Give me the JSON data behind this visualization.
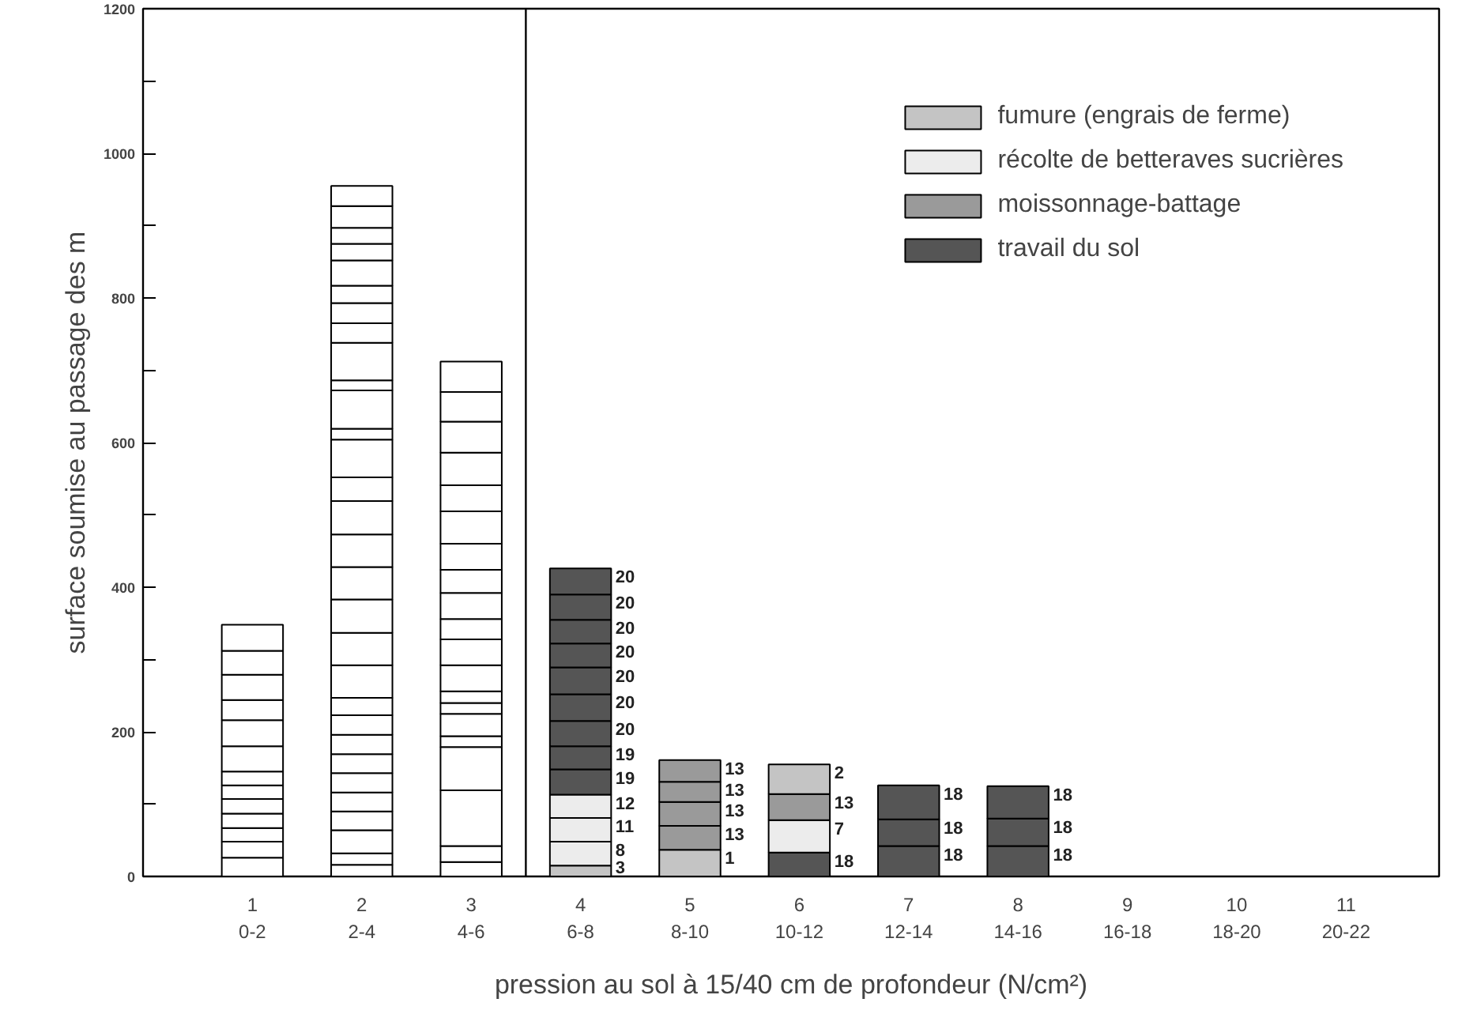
{
  "chart_data": {
    "type": "bar",
    "stacked": true,
    "xlabel": "pression au sol à 15/40 cm de profondeur (N/cm²)",
    "ylabel": "surface soumise au passage des m",
    "categories": [
      "1\n0-2",
      "2\n2-4",
      "3\n4-6",
      "4\n6-8",
      "5\n8-10",
      "6\n10-12",
      "7\n12-14",
      "8\n14-16",
      "9\n16-18",
      "10\n18-20",
      "11\n20-22"
    ],
    "ylim": [
      0,
      1200
    ],
    "yticks": [
      0,
      {
        "value": 100,
        "label": null
      },
      200,
      {
        "value": 300,
        "label": null
      },
      400,
      {
        "value": 500,
        "label": null
      },
      600,
      {
        "value": 700,
        "label": null
      },
      800,
      {
        "value": 900,
        "label": null
      },
      1000,
      {
        "value": 1100,
        "label": null
      },
      1200
    ],
    "legend": "top right",
    "series": [
      {
        "color": "#ffffff",
        "values": [
          26,
          16,
          20,
          null,
          null,
          null,
          null,
          null,
          null,
          null,
          null
        ]
      },
      {
        "color": "#ffffff",
        "values": [
          22,
          16,
          22,
          null,
          null,
          null,
          null,
          null,
          null,
          null,
          null
        ]
      },
      {
        "color": "#ffffff",
        "values": [
          19,
          32,
          77,
          null,
          null,
          null,
          null,
          null,
          null,
          null,
          null
        ]
      },
      {
        "color": "#ffffff",
        "values": [
          20,
          26,
          60,
          null,
          null,
          null,
          null,
          null,
          null,
          null,
          null
        ]
      },
      {
        "color": "#ffffff",
        "values": [
          20,
          26,
          15,
          null,
          null,
          null,
          null,
          null,
          null,
          null,
          null
        ]
      },
      {
        "color": "#ffffff",
        "values": [
          19,
          27,
          31,
          null,
          null,
          null,
          null,
          null,
          null,
          null,
          null
        ]
      },
      {
        "color": "#ffffff",
        "values": [
          19,
          26,
          15,
          null,
          null,
          null,
          null,
          null,
          null,
          null,
          null
        ]
      },
      {
        "color": "#ffffff",
        "values": [
          35,
          27,
          16,
          null,
          null,
          null,
          null,
          null,
          null,
          null,
          null
        ]
      },
      {
        "color": "#ffffff",
        "values": [
          36,
          27,
          36,
          null,
          null,
          null,
          null,
          null,
          null,
          null,
          null
        ]
      },
      {
        "color": "#ffffff",
        "values": [
          28,
          24,
          36,
          null,
          null,
          null,
          null,
          null,
          null,
          null,
          null
        ]
      },
      {
        "color": "#ffffff",
        "values": [
          35,
          45,
          28,
          null,
          null,
          null,
          null,
          null,
          null,
          null,
          null
        ]
      },
      {
        "color": "#ffffff",
        "values": [
          33,
          45,
          36,
          null,
          null,
          null,
          null,
          null,
          null,
          null,
          null
        ]
      },
      {
        "color": "#ffffff",
        "values": [
          36,
          46,
          32,
          null,
          null,
          null,
          null,
          null,
          null,
          null,
          null
        ]
      },
      {
        "color": "#ffffff",
        "values": [
          null,
          45,
          36,
          null,
          null,
          null,
          null,
          null,
          null,
          null,
          null
        ]
      },
      {
        "color": "#ffffff",
        "values": [
          null,
          45,
          45,
          null,
          null,
          null,
          null,
          null,
          null,
          null,
          null
        ]
      },
      {
        "color": "#ffffff",
        "values": [
          null,
          46,
          36,
          null,
          null,
          null,
          null,
          null,
          null,
          null,
          null
        ]
      },
      {
        "color": "#ffffff",
        "values": [
          null,
          33,
          45,
          null,
          null,
          null,
          null,
          null,
          null,
          null,
          null
        ]
      },
      {
        "color": "#ffffff",
        "values": [
          null,
          52,
          43,
          null,
          null,
          null,
          null,
          null,
          null,
          null,
          null
        ]
      },
      {
        "color": "#ffffff",
        "values": [
          null,
          15,
          41,
          null,
          null,
          null,
          null,
          null,
          null,
          null,
          null
        ]
      },
      {
        "color": "#ffffff",
        "values": [
          null,
          53,
          42,
          null,
          null,
          null,
          null,
          null,
          null,
          null,
          null
        ]
      },
      {
        "color": "#ffffff",
        "values": [
          null,
          14,
          null,
          null,
          null,
          null,
          null,
          null,
          null,
          null,
          null
        ]
      },
      {
        "color": "#ffffff",
        "values": [
          null,
          52,
          null,
          null,
          null,
          null,
          null,
          null,
          null,
          null,
          null
        ]
      },
      {
        "color": "#ffffff",
        "values": [
          null,
          27,
          null,
          null,
          null,
          null,
          null,
          null,
          null,
          null,
          null
        ]
      },
      {
        "color": "#ffffff",
        "values": [
          null,
          28,
          null,
          null,
          null,
          null,
          null,
          null,
          null,
          null,
          null
        ]
      },
      {
        "color": "#ffffff",
        "values": [
          null,
          24,
          null,
          null,
          null,
          null,
          null,
          null,
          null,
          null,
          null
        ]
      },
      {
        "color": "#ffffff",
        "values": [
          null,
          35,
          null,
          null,
          null,
          null,
          null,
          null,
          null,
          null,
          null
        ]
      },
      {
        "color": "#ffffff",
        "values": [
          null,
          23,
          null,
          null,
          null,
          null,
          null,
          null,
          null,
          null,
          null
        ]
      },
      {
        "color": "#ffffff",
        "values": [
          null,
          22,
          null,
          null,
          null,
          null,
          null,
          null,
          null,
          null,
          null
        ]
      },
      {
        "color": "#ffffff",
        "values": [
          null,
          30,
          null,
          null,
          null,
          null,
          null,
          null,
          null,
          null,
          null
        ]
      },
      {
        "color": "#ffffff",
        "values": [
          null,
          28,
          null,
          null,
          null,
          null,
          null,
          null,
          null,
          null,
          null
        ]
      },
      {
        "name": "fumure (engrais de ferme)",
        "color": "#c4c4c4",
        "values": [
          null,
          null,
          null,
          15,
          37,
          null,
          null,
          null,
          null,
          null,
          null
        ]
      },
      {
        "name": "récolte de betteraves sucrières",
        "color": "#ececec",
        "values": [
          null,
          null,
          null,
          33,
          null,
          null,
          null,
          null,
          null,
          null,
          null
        ]
      },
      {
        "name": "moissonnage-battage",
        "color": "#9a9a9a",
        "values": [
          null,
          null,
          null,
          null,
          33,
          null,
          null,
          null,
          null,
          null,
          null
        ]
      },
      {
        "color": "#9a9a9a",
        "values": [
          null,
          null,
          null,
          null,
          33,
          null,
          null,
          null,
          null,
          null,
          null
        ]
      },
      {
        "color": "#9a9a9a",
        "values": [
          null,
          null,
          null,
          null,
          28,
          null,
          null,
          null,
          null,
          null,
          null
        ]
      },
      {
        "color": "#9a9a9a",
        "values": [
          null,
          null,
          null,
          null,
          30,
          null,
          null,
          null,
          null,
          null,
          null
        ]
      },
      {
        "name": "travail du sol",
        "color": "#555555",
        "values": [
          null,
          null,
          null,
          null,
          null,
          33,
          42,
          42,
          null,
          null,
          null
        ]
      },
      {
        "color": "#ececec",
        "values": [
          null,
          null,
          null,
          33,
          null,
          45,
          null,
          null,
          null,
          null,
          null
        ]
      },
      {
        "color": "#ececec",
        "values": [
          null,
          null,
          null,
          32,
          null,
          null,
          null,
          null,
          null,
          null,
          null
        ]
      },
      {
        "color": "#9a9a9a",
        "values": [
          null,
          null,
          null,
          null,
          null,
          36,
          null,
          null,
          null,
          null,
          null
        ]
      },
      {
        "color": "#555555",
        "values": [
          null,
          null,
          null,
          35,
          null,
          null,
          37,
          38,
          null,
          null,
          null
        ]
      },
      {
        "color": "#555555",
        "values": [
          null,
          null,
          null,
          32,
          null,
          null,
          47,
          45,
          null,
          null,
          null
        ]
      },
      {
        "color": "#555555",
        "values": [
          null,
          null,
          null,
          35,
          null,
          null,
          null,
          null,
          null,
          null,
          null
        ]
      },
      {
        "color": "#555555",
        "values": [
          null,
          null,
          null,
          37,
          null,
          null,
          null,
          null,
          null,
          null,
          null
        ]
      },
      {
        "color": "#555555",
        "values": [
          null,
          null,
          null,
          37,
          null,
          null,
          null,
          null,
          null,
          null,
          null
        ]
      },
      {
        "color": "#555555",
        "values": [
          null,
          null,
          null,
          33,
          null,
          null,
          null,
          null,
          null,
          null,
          null
        ]
      },
      {
        "color": "#555555",
        "values": [
          null,
          null,
          null,
          33,
          null,
          null,
          null,
          null,
          null,
          null,
          null
        ]
      },
      {
        "color": "#555555",
        "values": [
          null,
          null,
          null,
          35,
          null,
          null,
          null,
          null,
          null,
          null,
          null
        ]
      },
      {
        "color": "#555555",
        "values": [
          null,
          null,
          null,
          36,
          null,
          null,
          null,
          null,
          null,
          null,
          null
        ]
      },
      {
        "color": "#c4c4c4",
        "values": [
          null,
          null,
          null,
          null,
          null,
          41,
          null,
          null,
          null,
          null,
          null
        ]
      }
    ],
    "annotations": [
      {
        "text": "3",
        "x": "4\n6-8",
        "y": 15
      },
      {
        "text": "8",
        "x": "4\n6-8",
        "y": 48
      },
      {
        "text": "11",
        "x": "4\n6-8",
        "y": 81
      },
      {
        "text": "12",
        "x": "4\n6-8",
        "y": 113
      },
      {
        "text": "19",
        "x": "4\n6-8",
        "y": 148
      },
      {
        "text": "19",
        "x": "4\n6-8",
        "y": 180
      },
      {
        "text": "20",
        "x": "4\n6-8",
        "y": 215
      },
      {
        "text": "20",
        "x": "4\n6-8",
        "y": 252
      },
      {
        "text": "20",
        "x": "4\n6-8",
        "y": 289
      },
      {
        "text": "20",
        "x": "4\n6-8",
        "y": 322
      },
      {
        "text": "20",
        "x": "4\n6-8",
        "y": 355
      },
      {
        "text": "20",
        "x": "4\n6-8",
        "y": 390
      },
      {
        "text": "20",
        "x": "4\n6-8",
        "y": 426
      },
      {
        "text": "1",
        "x": "5\n8-10",
        "y": 37
      },
      {
        "text": "13",
        "x": "5\n8-10",
        "y": 70
      },
      {
        "text": "13",
        "x": "5\n8-10",
        "y": 103
      },
      {
        "text": "13",
        "x": "5\n8-10",
        "y": 131
      },
      {
        "text": "13",
        "x": "5\n8-10",
        "y": 161
      },
      {
        "text": "18",
        "x": "6\n10-12",
        "y": 33
      },
      {
        "text": "7",
        "x": "6\n10-12",
        "y": 78
      },
      {
        "text": "13",
        "x": "6\n10-12",
        "y": 114
      },
      {
        "text": "2",
        "x": "6\n10-12",
        "y": 155
      },
      {
        "text": "18",
        "x": "7\n12-14",
        "y": 42
      },
      {
        "text": "18",
        "x": "7\n12-14",
        "y": 79
      },
      {
        "text": "18",
        "x": "7\n12-14",
        "y": 126
      },
      {
        "text": "18",
        "x": "8\n14-16",
        "y": 42
      },
      {
        "text": "18",
        "x": "8\n14-16",
        "y": 80
      },
      {
        "text": "18",
        "x": "8\n14-16",
        "y": 125
      }
    ]
  }
}
